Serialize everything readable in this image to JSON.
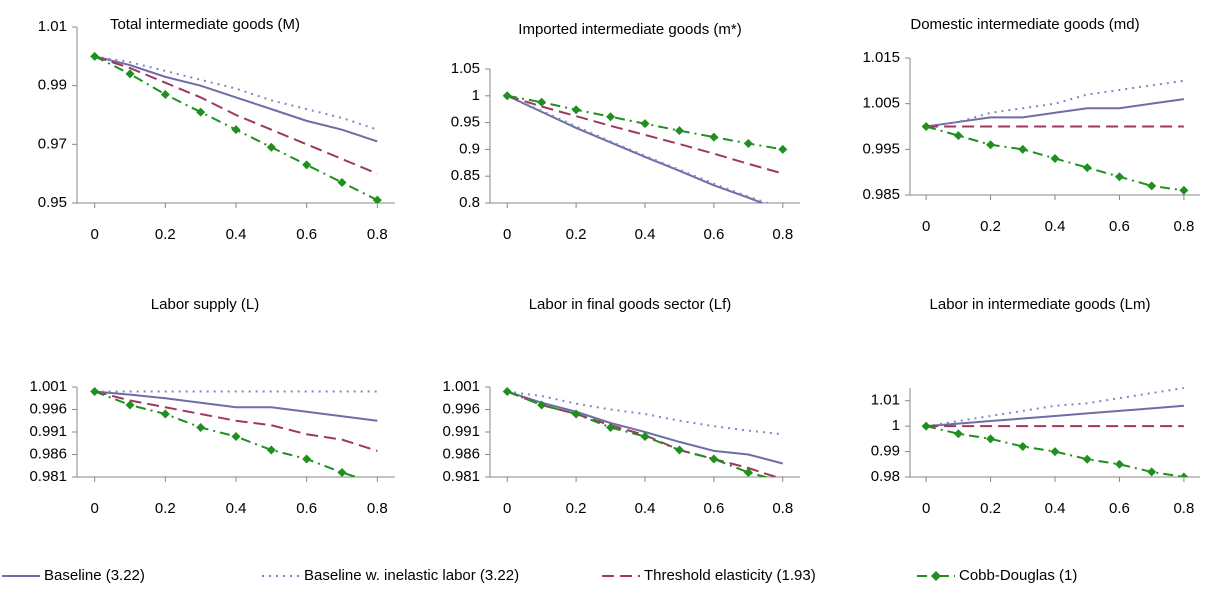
{
  "legend": [
    {
      "name": "Baseline (3.22)",
      "color": "#6e6ea6",
      "style": "solid"
    },
    {
      "name": "Baseline w. inelastic labor (3.22)",
      "color": "#8484c4",
      "style": "dotted"
    },
    {
      "name": "Threshold elasticity (1.93)",
      "color": "#a0375c",
      "style": "dashed"
    },
    {
      "name": "Cobb-Douglas (1)",
      "color": "#1f8f1f",
      "style": "dashdot",
      "marker": "diamond"
    }
  ],
  "chart_data": [
    {
      "type": "line",
      "title": "Total intermediate goods (M)",
      "x": [
        0,
        0.1,
        0.2,
        0.3,
        0.4,
        0.5,
        0.6,
        0.7,
        0.8
      ],
      "xlim": [
        -0.05,
        0.85
      ],
      "xticks": [
        0,
        0.2,
        0.4,
        0.6,
        0.8
      ],
      "ylim": [
        0.95,
        1.01
      ],
      "yticks": [
        0.95,
        0.97,
        0.99,
        1.01
      ],
      "series": [
        {
          "values": [
            1,
            0.997,
            0.993,
            0.99,
            0.986,
            0.982,
            0.978,
            0.975,
            0.971
          ]
        },
        {
          "values": [
            1,
            0.998,
            0.995,
            0.992,
            0.989,
            0.985,
            0.982,
            0.979,
            0.975
          ]
        },
        {
          "values": [
            1,
            0.996,
            0.991,
            0.986,
            0.98,
            0.975,
            0.97,
            0.965,
            0.96
          ]
        },
        {
          "values": [
            1,
            0.994,
            0.987,
            0.981,
            0.975,
            0.969,
            0.963,
            0.957,
            0.951
          ]
        }
      ]
    },
    {
      "type": "line",
      "title": "Imported intermediate goods (m*)",
      "x": [
        0,
        0.1,
        0.2,
        0.3,
        0.4,
        0.5,
        0.6,
        0.7,
        0.8
      ],
      "xlim": [
        -0.05,
        0.85
      ],
      "xticks": [
        0,
        0.2,
        0.4,
        0.6,
        0.8
      ],
      "ylim": [
        0.8,
        1.05
      ],
      "yticks": [
        0.8,
        0.85,
        0.9,
        0.95,
        1,
        1.05
      ],
      "series": [
        {
          "values": [
            1,
            0.97,
            0.94,
            0.913,
            0.886,
            0.86,
            0.833,
            0.81,
            0.785
          ]
        },
        {
          "values": [
            1,
            0.972,
            0.943,
            0.915,
            0.888,
            0.862,
            0.836,
            0.812,
            0.79
          ]
        },
        {
          "values": [
            1,
            0.98,
            0.962,
            0.944,
            0.927,
            0.91,
            0.892,
            0.873,
            0.855
          ]
        },
        {
          "values": [
            1,
            0.988,
            0.974,
            0.961,
            0.948,
            0.935,
            0.923,
            0.911,
            0.9
          ]
        }
      ]
    },
    {
      "type": "line",
      "title": "Domestic intermediate goods (md)",
      "x": [
        0,
        0.1,
        0.2,
        0.3,
        0.4,
        0.5,
        0.6,
        0.7,
        0.8
      ],
      "xlim": [
        -0.05,
        0.85
      ],
      "xticks": [
        0,
        0.2,
        0.4,
        0.6,
        0.8
      ],
      "ylim": [
        0.985,
        1.015
      ],
      "yticks": [
        0.985,
        0.995,
        1.005,
        1.015
      ],
      "series": [
        {
          "values": [
            1,
            1.001,
            1.002,
            1.002,
            1.003,
            1.004,
            1.004,
            1.005,
            1.006
          ]
        },
        {
          "values": [
            1,
            1.001,
            1.003,
            1.004,
            1.005,
            1.007,
            1.008,
            1.009,
            1.01
          ]
        },
        {
          "values": [
            1,
            1,
            1,
            1,
            1,
            1,
            1,
            1,
            1
          ]
        },
        {
          "values": [
            1,
            0.998,
            0.996,
            0.995,
            0.993,
            0.991,
            0.989,
            0.987,
            0.986
          ]
        }
      ]
    },
    {
      "type": "line",
      "title": "Labor supply (L)",
      "x": [
        0,
        0.1,
        0.2,
        0.3,
        0.4,
        0.5,
        0.6,
        0.7,
        0.8
      ],
      "xlim": [
        -0.05,
        0.85
      ],
      "xticks": [
        0,
        0.2,
        0.4,
        0.6,
        0.8
      ],
      "ylim": [
        0.981,
        1.001
      ],
      "yticks": [
        0.981,
        0.986,
        0.991,
        0.996,
        1.001
      ],
      "series": [
        {
          "values": [
            1,
            0.9993,
            0.9985,
            0.9975,
            0.9965,
            0.9965,
            0.9955,
            0.9945,
            0.9935
          ]
        },
        {
          "values": [
            1,
            1,
            1,
            1,
            1,
            1,
            1,
            1,
            1
          ]
        },
        {
          "values": [
            1,
            0.998,
            0.9965,
            0.995,
            0.9935,
            0.9925,
            0.9905,
            0.9893,
            0.9868
          ]
        },
        {
          "values": [
            1,
            0.997,
            0.995,
            0.992,
            0.99,
            0.987,
            0.985,
            0.982,
            0.9795
          ]
        }
      ]
    },
    {
      "type": "line",
      "title": "Labor in final goods sector (Lf)",
      "x": [
        0,
        0.1,
        0.2,
        0.3,
        0.4,
        0.5,
        0.6,
        0.7,
        0.8
      ],
      "xlim": [
        -0.05,
        0.85
      ],
      "xticks": [
        0,
        0.2,
        0.4,
        0.6,
        0.8
      ],
      "ylim": [
        0.981,
        1.001
      ],
      "yticks": [
        0.981,
        0.986,
        0.991,
        0.996,
        1.001
      ],
      "series": [
        {
          "values": [
            1,
            0.9975,
            0.9955,
            0.993,
            0.991,
            0.9888,
            0.9868,
            0.986,
            0.984
          ]
        },
        {
          "values": [
            1,
            0.999,
            0.9973,
            0.996,
            0.995,
            0.9935,
            0.9923,
            0.9913,
            0.9905
          ]
        },
        {
          "values": [
            1,
            0.997,
            0.995,
            0.9925,
            0.9903,
            0.987,
            0.985,
            0.983,
            0.9805
          ]
        },
        {
          "values": [
            1,
            0.997,
            0.995,
            0.992,
            0.99,
            0.987,
            0.985,
            0.982,
            0.98
          ]
        }
      ]
    },
    {
      "type": "line",
      "title": "Labor in intermediate goods (Lm)",
      "x": [
        0,
        0.1,
        0.2,
        0.3,
        0.4,
        0.5,
        0.6,
        0.7,
        0.8
      ],
      "xlim": [
        -0.05,
        0.85
      ],
      "xticks": [
        0,
        0.2,
        0.4,
        0.6,
        0.8
      ],
      "ylim": [
        0.98,
        1.015
      ],
      "yticks": [
        0.98,
        0.99,
        1,
        1.01
      ],
      "series": [
        {
          "values": [
            1,
            1.001,
            1.002,
            1.003,
            1.004,
            1.005,
            1.006,
            1.007,
            1.008
          ]
        },
        {
          "values": [
            1,
            1.002,
            1.004,
            1.006,
            1.008,
            1.009,
            1.011,
            1.013,
            1.015
          ]
        },
        {
          "values": [
            1,
            1,
            1,
            1,
            1,
            1,
            1,
            1,
            1
          ]
        },
        {
          "values": [
            1,
            0.997,
            0.995,
            0.992,
            0.99,
            0.987,
            0.985,
            0.982,
            0.98
          ]
        }
      ]
    }
  ]
}
